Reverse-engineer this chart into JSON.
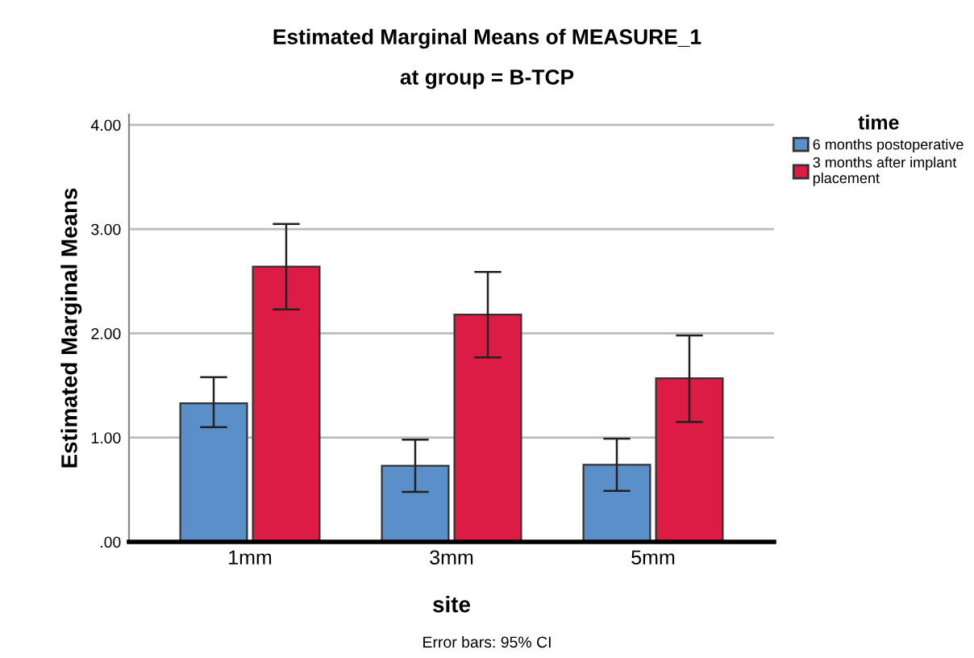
{
  "chart_data": {
    "type": "bar",
    "title": "Estimated Marginal Means of MEASURE_1",
    "subtitle": "at group = B-TCP",
    "xlabel": "site",
    "ylabel": "Estimated Marginal Means",
    "legend_title": "time",
    "categories": [
      "1mm",
      "3mm",
      "5mm"
    ],
    "series": [
      {
        "name": "6 months postoperative",
        "color": "#5b8fc9",
        "values": [
          1.33,
          0.73,
          0.74
        ],
        "errors": [
          [
            1.1,
            1.58
          ],
          [
            0.48,
            0.98
          ],
          [
            0.49,
            0.99
          ]
        ]
      },
      {
        "name": "3 months after implant placement",
        "color": "#dc1c44",
        "values": [
          2.64,
          2.18,
          1.57
        ],
        "errors": [
          [
            2.23,
            3.05
          ],
          [
            1.77,
            2.59
          ],
          [
            1.15,
            1.98
          ]
        ]
      }
    ],
    "ylim": [
      0,
      4.1
    ],
    "yticks": [
      {
        "value": 0,
        "label": ".00"
      },
      {
        "value": 1,
        "label": "1.00"
      },
      {
        "value": 2,
        "label": "2.00"
      },
      {
        "value": 3,
        "label": "3.00"
      },
      {
        "value": 4,
        "label": "4.00"
      }
    ],
    "grid": "y",
    "legend": "top right",
    "annotations": [
      "Error bars: 95% CI"
    ]
  }
}
